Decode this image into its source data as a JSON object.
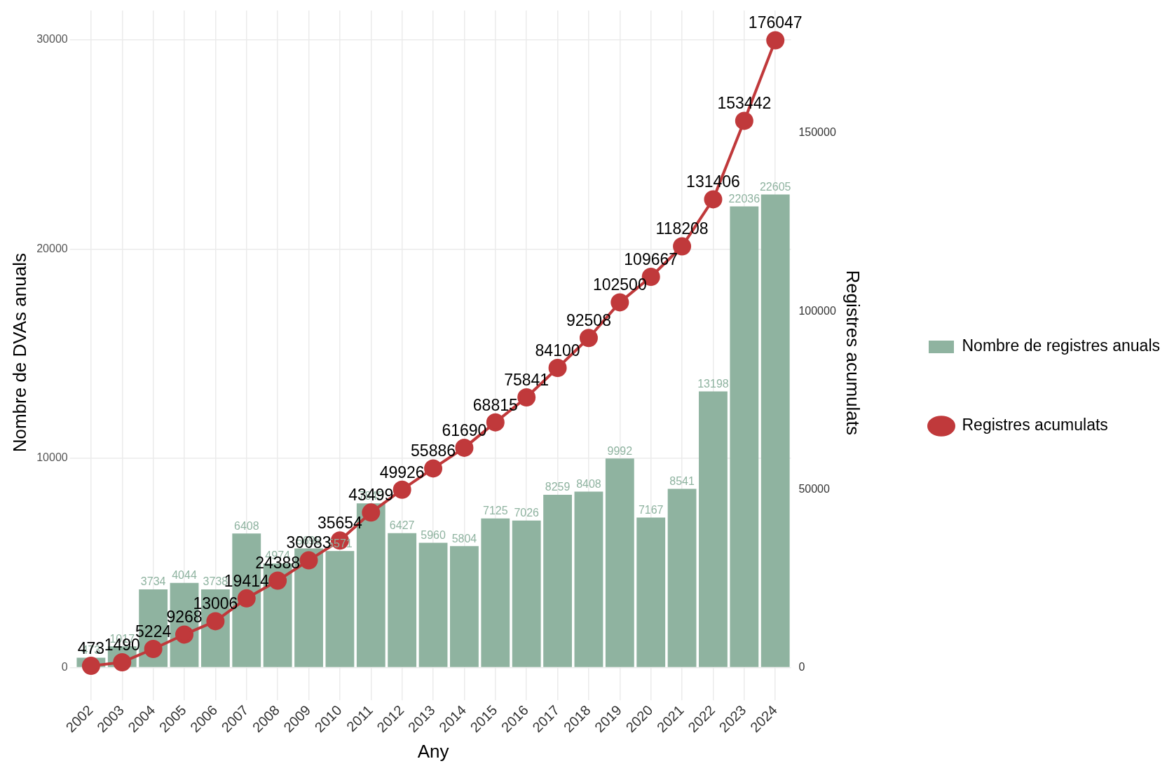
{
  "chart_data": {
    "type": "bar",
    "xlabel": "Any",
    "ylabel": "Nombre de DVAs anuals",
    "y2label": "Registres acumulats",
    "categories": [
      "2002",
      "2003",
      "2004",
      "2005",
      "2006",
      "2007",
      "2008",
      "2009",
      "2010",
      "2011",
      "2012",
      "2013",
      "2014",
      "2015",
      "2016",
      "2017",
      "2018",
      "2019",
      "2020",
      "2021",
      "2022",
      "2023",
      "2024"
    ],
    "series": [
      {
        "name": "Nombre de registres anuals",
        "color": "#8fb3a0",
        "values": [
          473,
          1017,
          3734,
          4044,
          3738,
          6408,
          4974,
          5695,
          5571,
          7845,
          6427,
          5960,
          5804,
          7125,
          7026,
          8259,
          8408,
          9992,
          7167,
          8541,
          13198,
          22036,
          22605
        ]
      },
      {
        "name": "Registres acumulats",
        "type": "line",
        "axis": "y2",
        "color": "#c0393b",
        "values": [
          473,
          1490,
          5224,
          9268,
          13006,
          19414,
          24388,
          30083,
          35654,
          43499,
          49926,
          55886,
          61690,
          68815,
          75841,
          84100,
          92508,
          102500,
          109667,
          118208,
          131406,
          153442,
          176047
        ]
      }
    ],
    "ylim": [
      -1300,
      31400
    ],
    "yticks": [
      0,
      10000,
      20000,
      30000
    ],
    "y2lim": [
      -7640,
      184400
    ],
    "y2ticks": [
      0,
      50000,
      100000,
      150000
    ],
    "grid": true,
    "legend": "right",
    "marker": "circle",
    "line_style": "solid",
    "data_labels": true
  }
}
